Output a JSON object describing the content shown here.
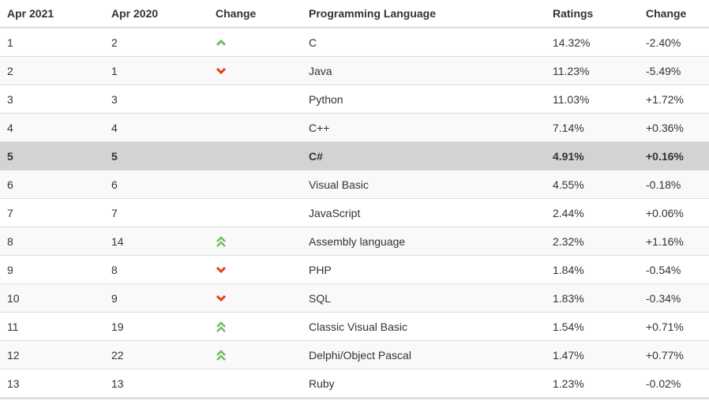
{
  "colors": {
    "up": "#6fbf5f",
    "down": "#e5400f",
    "highlight": "#d3d3d3"
  },
  "headers": [
    "Apr 2021",
    "Apr 2020",
    "Change",
    "Programming Language",
    "Ratings",
    "Change"
  ],
  "rows": [
    {
      "r2021": "1",
      "r2020": "2",
      "change": "up",
      "lang": "C",
      "rating": "14.32%",
      "delta": "-2.40%"
    },
    {
      "r2021": "2",
      "r2020": "1",
      "change": "down",
      "lang": "Java",
      "rating": "11.23%",
      "delta": "-5.49%"
    },
    {
      "r2021": "3",
      "r2020": "3",
      "change": "none",
      "lang": "Python",
      "rating": "11.03%",
      "delta": "+1.72%"
    },
    {
      "r2021": "4",
      "r2020": "4",
      "change": "none",
      "lang": "C++",
      "rating": "7.14%",
      "delta": "+0.36%"
    },
    {
      "r2021": "5",
      "r2020": "5",
      "change": "none",
      "lang": "C#",
      "rating": "4.91%",
      "delta": "+0.16%",
      "highlighted": true
    },
    {
      "r2021": "6",
      "r2020": "6",
      "change": "none",
      "lang": "Visual Basic",
      "rating": "4.55%",
      "delta": "-0.18%"
    },
    {
      "r2021": "7",
      "r2020": "7",
      "change": "none",
      "lang": "JavaScript",
      "rating": "2.44%",
      "delta": "+0.06%"
    },
    {
      "r2021": "8",
      "r2020": "14",
      "change": "double-up",
      "lang": "Assembly language",
      "rating": "2.32%",
      "delta": "+1.16%"
    },
    {
      "r2021": "9",
      "r2020": "8",
      "change": "down",
      "lang": "PHP",
      "rating": "1.84%",
      "delta": "-0.54%"
    },
    {
      "r2021": "10",
      "r2020": "9",
      "change": "down",
      "lang": "SQL",
      "rating": "1.83%",
      "delta": "-0.34%"
    },
    {
      "r2021": "11",
      "r2020": "19",
      "change": "double-up",
      "lang": "Classic Visual Basic",
      "rating": "1.54%",
      "delta": "+0.71%"
    },
    {
      "r2021": "12",
      "r2020": "22",
      "change": "double-up",
      "lang": "Delphi/Object Pascal",
      "rating": "1.47%",
      "delta": "+0.77%"
    },
    {
      "r2021": "13",
      "r2020": "13",
      "change": "none",
      "lang": "Ruby",
      "rating": "1.23%",
      "delta": "-0.02%"
    }
  ]
}
